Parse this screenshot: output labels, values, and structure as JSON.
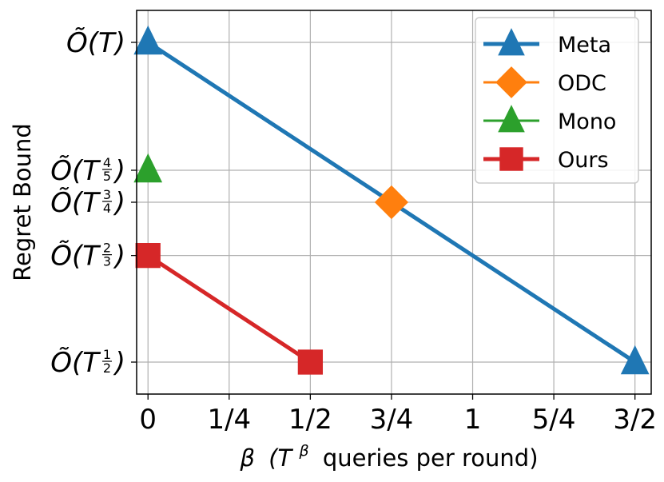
{
  "chart_data": {
    "type": "line",
    "xlabel": "β (T^β queries per round)",
    "xlabel_parts": {
      "beta": "β",
      "open": "(T",
      "sup": "β",
      "rest": "queries per round)"
    },
    "ylabel": "Regret Bound",
    "x_ticks": [
      {
        "value": 0,
        "label": "0"
      },
      {
        "value": 0.25,
        "label": "1/4"
      },
      {
        "value": 0.5,
        "label": "1/2"
      },
      {
        "value": 0.75,
        "label": "3/4"
      },
      {
        "value": 1.0,
        "label": "1"
      },
      {
        "value": 1.25,
        "label": "5/4"
      },
      {
        "value": 1.5,
        "label": "3/2"
      }
    ],
    "y_ticks": [
      {
        "value": 1.0,
        "label": "Õ(T)",
        "base": "Õ(T",
        "num": "",
        "den": "",
        "close": ")"
      },
      {
        "value": 0.8,
        "label": "Õ(T^{4/5})",
        "base": "Õ(T",
        "num": "4",
        "den": "5",
        "close": ")"
      },
      {
        "value": 0.75,
        "label": "Õ(T^{3/4})",
        "base": "Õ(T",
        "num": "3",
        "den": "4",
        "close": ")"
      },
      {
        "value": 0.6667,
        "label": "Õ(T^{2/3})",
        "base": "Õ(T",
        "num": "2",
        "den": "3",
        "close": ")"
      },
      {
        "value": 0.5,
        "label": "Õ(T^{1/2})",
        "base": "Õ(T",
        "num": "1",
        "den": "2",
        "close": ")"
      }
    ],
    "xlim": [
      -0.035,
      1.55
    ],
    "ylim": [
      0.45,
      1.05
    ],
    "grid": true,
    "legend_position": "top-right",
    "series": [
      {
        "name": "Meta",
        "color": "#1f77b4",
        "marker": "triangle",
        "line": true,
        "x": [
          0,
          1.5
        ],
        "y": [
          1.0,
          0.5
        ]
      },
      {
        "name": "ODC",
        "color": "#ff7f0e",
        "marker": "diamond",
        "line": false,
        "x": [
          0.75
        ],
        "y": [
          0.75
        ]
      },
      {
        "name": "Mono",
        "color": "#2ca02c",
        "marker": "triangle",
        "line": false,
        "x": [
          0
        ],
        "y": [
          0.8
        ]
      },
      {
        "name": "Ours",
        "color": "#d62728",
        "marker": "square",
        "line": true,
        "x": [
          0,
          0.5
        ],
        "y": [
          0.6667,
          0.5
        ]
      }
    ]
  }
}
